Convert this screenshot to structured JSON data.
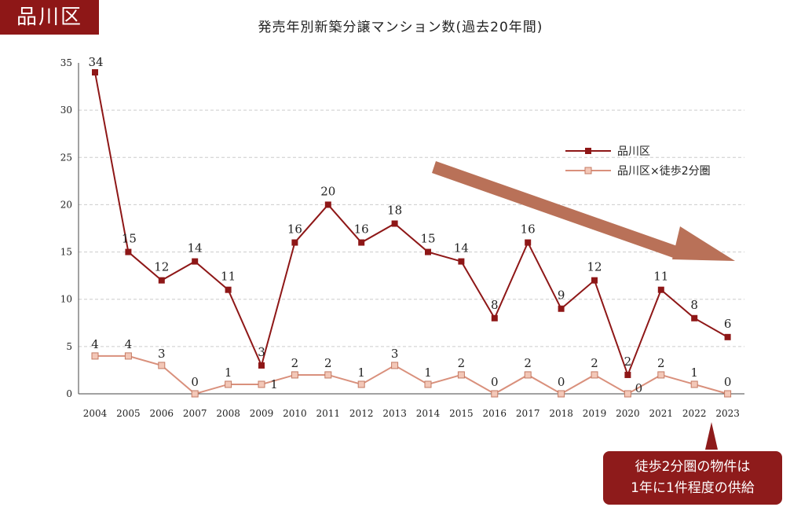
{
  "tag_label": "品川区",
  "callout": {
    "line1": "徒歩2分圏の物件は",
    "line2": "1年に1件程度の供給"
  },
  "colors": {
    "primary": "#8e1717",
    "secondary": "#d9907c",
    "arrow": "#b97158"
  },
  "chart_data": {
    "type": "line",
    "title": "発売年別新築分譲マンション数(過去20年間)",
    "xlabel": "",
    "ylabel": "",
    "ylim": [
      0,
      35
    ],
    "yticks": [
      0,
      5,
      10,
      15,
      20,
      25,
      30,
      35
    ],
    "grid": true,
    "legend_position": "top-right",
    "categories": [
      "2004",
      "2005",
      "2006",
      "2007",
      "2008",
      "2009",
      "2010",
      "2011",
      "2012",
      "2013",
      "2014",
      "2015",
      "2016",
      "2017",
      "2018",
      "2019",
      "2020",
      "2021",
      "2022",
      "2023"
    ],
    "series": [
      {
        "name": "品川区",
        "marker": "filled-square",
        "values": [
          34,
          15,
          12,
          14,
          11,
          3,
          16,
          20,
          16,
          18,
          15,
          14,
          8,
          16,
          9,
          12,
          2,
          11,
          8,
          6
        ]
      },
      {
        "name": "品川区×徒歩2分圏",
        "marker": "open-square",
        "values": [
          4,
          4,
          3,
          0,
          1,
          1,
          2,
          2,
          1,
          3,
          1,
          2,
          0,
          2,
          0,
          2,
          0,
          2,
          1,
          0
        ]
      }
    ],
    "annotations": [
      "downward-trend-arrow"
    ]
  }
}
